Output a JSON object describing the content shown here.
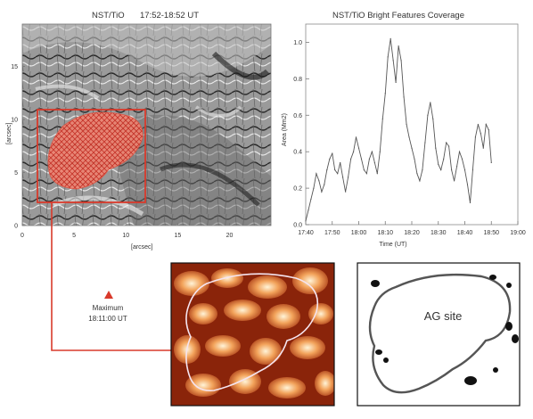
{
  "flow_panel": {
    "title": "NST/TiO",
    "time_range": "17:52-18:52 UT",
    "axis_label": "[arcsec]",
    "x_ticks": [
      "0",
      "5",
      "10",
      "15",
      "20"
    ],
    "y_ticks": [
      "0",
      "5",
      "10",
      "15"
    ],
    "x_range": [
      0,
      24
    ],
    "y_range": [
      0,
      19
    ]
  },
  "chart_data": {
    "type": "line",
    "title": "NST/TiO Bright Features Coverage",
    "xlabel": "Time (UT)",
    "ylabel": "Area (Mm2)",
    "x_ticks": [
      "17:40",
      "17:50",
      "18:00",
      "18:10",
      "18:20",
      "18:30",
      "18:40",
      "18:50",
      "19:00"
    ],
    "y_ticks": [
      "0.0",
      "0.2",
      "0.4",
      "0.6",
      "0.8",
      "1.0"
    ],
    "xlim_minutes": [
      0,
      80
    ],
    "ylim": [
      0,
      1.1
    ],
    "grid": false,
    "series": [
      {
        "x_minutes": [
          0,
          1,
          2,
          3,
          4,
          5,
          6,
          7,
          8,
          9,
          10,
          11,
          12,
          13,
          14,
          15,
          16,
          17,
          18,
          19,
          20,
          21,
          22,
          23,
          24,
          25,
          26,
          27,
          28,
          29,
          30,
          31,
          32,
          33,
          34,
          35,
          36,
          37,
          38,
          39,
          40,
          41,
          42,
          43,
          44,
          45,
          46,
          47,
          48,
          49,
          50,
          51,
          52,
          53,
          54,
          55,
          56,
          57,
          58,
          59,
          60,
          61,
          62,
          63,
          64,
          65,
          66,
          67,
          68,
          69,
          70
        ],
        "values": [
          0.02,
          0.08,
          0.14,
          0.2,
          0.28,
          0.24,
          0.18,
          0.22,
          0.3,
          0.36,
          0.39,
          0.3,
          0.28,
          0.34,
          0.26,
          0.18,
          0.26,
          0.36,
          0.4,
          0.48,
          0.42,
          0.36,
          0.3,
          0.28,
          0.36,
          0.4,
          0.34,
          0.28,
          0.4,
          0.58,
          0.72,
          0.92,
          1.02,
          0.9,
          0.78,
          0.98,
          0.9,
          0.7,
          0.55,
          0.48,
          0.42,
          0.36,
          0.28,
          0.24,
          0.3,
          0.45,
          0.6,
          0.67,
          0.58,
          0.42,
          0.33,
          0.3,
          0.36,
          0.45,
          0.43,
          0.3,
          0.24,
          0.32,
          0.4,
          0.36,
          0.3,
          0.22,
          0.12,
          0.3,
          0.48,
          0.55,
          0.5,
          0.42,
          0.55,
          0.52,
          0.34
        ]
      }
    ]
  },
  "maximum_label": {
    "title": "Maximum",
    "time": "18:11:00  UT"
  },
  "ag_panel": {
    "label": "AG site"
  },
  "colors": {
    "highlight": "#d93a2b",
    "line": "#555555",
    "axis": "#7a7a7a"
  }
}
